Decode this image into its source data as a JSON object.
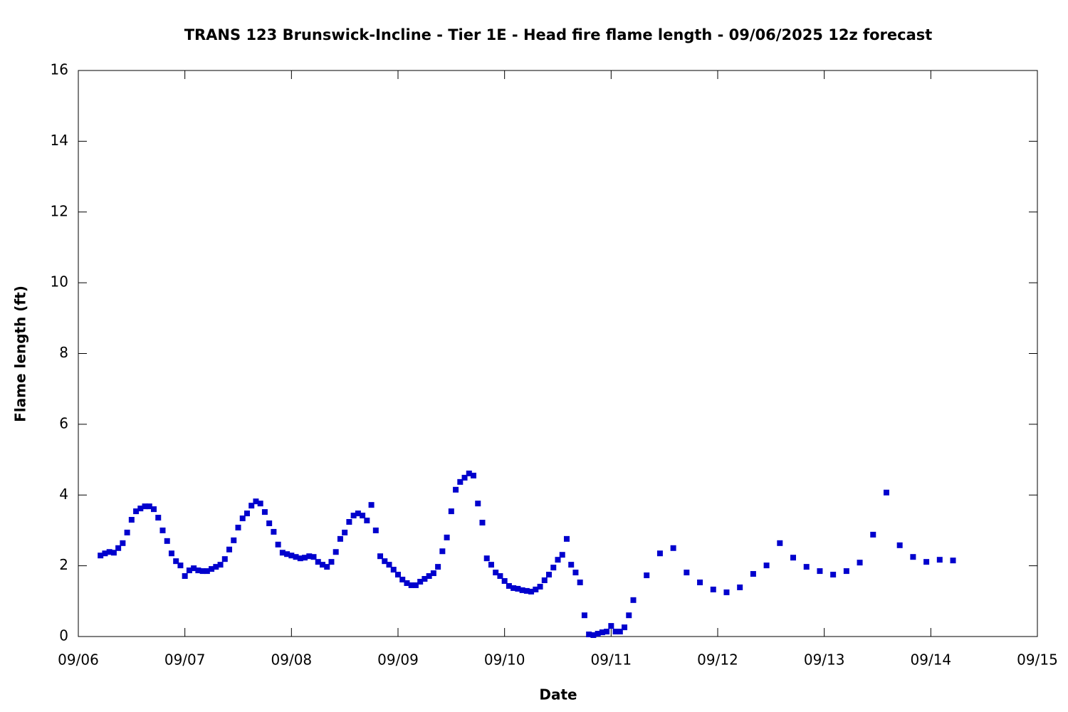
{
  "chart_data": {
    "type": "scatter",
    "title": "TRANS 123 Brunswick-Incline - Tier 1E - Head fire flame length - 09/06/2025 12z forecast",
    "x_label": "Date",
    "y_label": "Flame length (ft)",
    "xlim": [
      0,
      216
    ],
    "xticks": [
      {
        "value": 0,
        "label": "09/06"
      },
      {
        "value": 24,
        "label": "09/07"
      },
      {
        "value": 48,
        "label": "09/08"
      },
      {
        "value": 72,
        "label": "09/09"
      },
      {
        "value": 96,
        "label": "09/10"
      },
      {
        "value": 120,
        "label": "09/11"
      },
      {
        "value": 144,
        "label": "09/12"
      },
      {
        "value": 168,
        "label": "09/13"
      },
      {
        "value": 192,
        "label": "09/14"
      },
      {
        "value": 216,
        "label": "09/15"
      }
    ],
    "ylim": [
      0,
      16
    ],
    "yticks": [
      0,
      2,
      4,
      6,
      8,
      10,
      12,
      14,
      16
    ],
    "series": [
      {
        "color": "#0000cd",
        "x": [
          5,
          6,
          7,
          8,
          9,
          10,
          11,
          12,
          13,
          14,
          15,
          16,
          17,
          18,
          19,
          20,
          21,
          22,
          23,
          24,
          25,
          26,
          27,
          28,
          29,
          30,
          31,
          32,
          33,
          34,
          35,
          36,
          37,
          38,
          39,
          40,
          41,
          42,
          43,
          44,
          45,
          46,
          47,
          48,
          49,
          50,
          51,
          52,
          53,
          54,
          55,
          56,
          57,
          58,
          59,
          60,
          61,
          62,
          63,
          64,
          65,
          66,
          67,
          68,
          69,
          70,
          71,
          72,
          73,
          74,
          75,
          76,
          77,
          78,
          79,
          80,
          81,
          82,
          83,
          84,
          85,
          86,
          87,
          88,
          89,
          90,
          91,
          92,
          93,
          94,
          95,
          96,
          97,
          98,
          99,
          100,
          101,
          102,
          103,
          104,
          105,
          106,
          107,
          108,
          109,
          110,
          111,
          112,
          113,
          114,
          115,
          116,
          117,
          118,
          119,
          120,
          121,
          122,
          123,
          124,
          125,
          128,
          131,
          134,
          137,
          140,
          143,
          146,
          149,
          152,
          155,
          158,
          161,
          164,
          167,
          170,
          173,
          176,
          179,
          182,
          185,
          188,
          191,
          194,
          197
        ],
        "values": [
          2.29,
          2.35,
          2.39,
          2.37,
          2.5,
          2.64,
          2.94,
          3.3,
          3.54,
          3.62,
          3.68,
          3.68,
          3.6,
          3.36,
          3.0,
          2.7,
          2.35,
          2.13,
          2.01,
          1.71,
          1.87,
          1.93,
          1.87,
          1.85,
          1.85,
          1.91,
          1.97,
          2.03,
          2.19,
          2.46,
          2.72,
          3.08,
          3.34,
          3.48,
          3.7,
          3.82,
          3.76,
          3.52,
          3.2,
          2.96,
          2.6,
          2.37,
          2.33,
          2.29,
          2.25,
          2.21,
          2.23,
          2.27,
          2.25,
          2.11,
          2.03,
          1.97,
          2.11,
          2.39,
          2.76,
          2.94,
          3.24,
          3.42,
          3.48,
          3.42,
          3.28,
          3.72,
          3.0,
          2.27,
          2.13,
          2.03,
          1.89,
          1.75,
          1.61,
          1.51,
          1.45,
          1.45,
          1.55,
          1.63,
          1.71,
          1.79,
          1.97,
          2.41,
          2.8,
          3.54,
          4.15,
          4.37,
          4.49,
          4.61,
          4.55,
          3.76,
          3.22,
          2.21,
          2.03,
          1.81,
          1.71,
          1.57,
          1.43,
          1.37,
          1.35,
          1.31,
          1.29,
          1.27,
          1.33,
          1.41,
          1.59,
          1.75,
          1.95,
          2.17,
          2.31,
          2.76,
          2.03,
          1.81,
          1.53,
          0.6,
          0.06,
          0.04,
          0.08,
          0.12,
          0.14,
          0.3,
          0.14,
          0.14,
          0.26,
          0.6,
          1.03,
          1.73,
          2.35,
          2.5,
          1.81,
          1.53,
          1.33,
          1.25,
          1.39,
          1.77,
          2.01,
          2.64,
          2.23,
          1.97,
          1.85,
          1.75,
          1.85,
          2.09,
          2.88,
          4.07,
          2.58,
          2.25,
          2.11,
          2.17,
          2.15
        ]
      }
    ]
  }
}
